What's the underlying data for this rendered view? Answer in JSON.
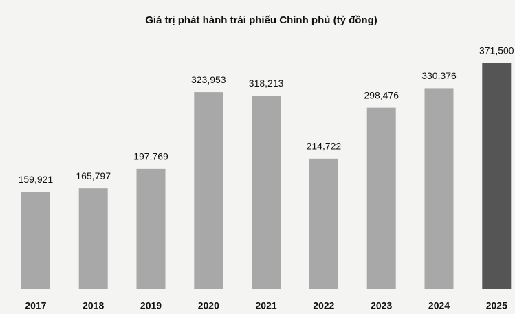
{
  "chart_data": {
    "type": "bar",
    "title": "Giá trị phát hành trái phiếu Chính phủ (tỷ đồng)",
    "categories": [
      "2017",
      "2018",
      "2019",
      "2020",
      "2021",
      "2022",
      "2023",
      "2024",
      "2025"
    ],
    "values": [
      159921,
      165797,
      197769,
      323953,
      318213,
      214722,
      298476,
      330376,
      371500
    ],
    "value_labels": [
      "159,921",
      "165,797",
      "197,769",
      "323,953",
      "318,213",
      "214,722",
      "298,476",
      "330,376",
      "371,500"
    ],
    "colors": [
      "#a8a8a8",
      "#a8a8a8",
      "#a8a8a8",
      "#a8a8a8",
      "#a8a8a8",
      "#a8a8a8",
      "#a8a8a8",
      "#a8a8a8",
      "#555555"
    ]
  }
}
